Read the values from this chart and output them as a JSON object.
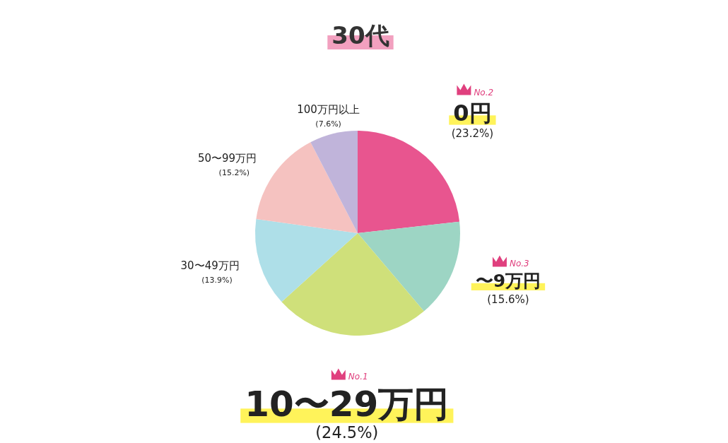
{
  "chart_data": {
    "type": "pie",
    "title": "30代",
    "categories": [
      "0円",
      "〜9万円",
      "10〜29万円",
      "30〜49万円",
      "50〜99万円",
      "100万円以上"
    ],
    "values": [
      23.2,
      15.6,
      24.5,
      13.9,
      15.2,
      7.6
    ],
    "value_labels": [
      "(23.2%)",
      "(15.6%)",
      "(24.5%)",
      "(13.9%)",
      "(15.2%)",
      "(7.6%)"
    ],
    "colors": [
      "#e8558f",
      "#9dd5c4",
      "#cfe07a",
      "#aedfe8",
      "#f5c2c0",
      "#c0b4da"
    ],
    "annotations": [
      "No.1",
      "No.2",
      "No.3"
    ]
  }
}
